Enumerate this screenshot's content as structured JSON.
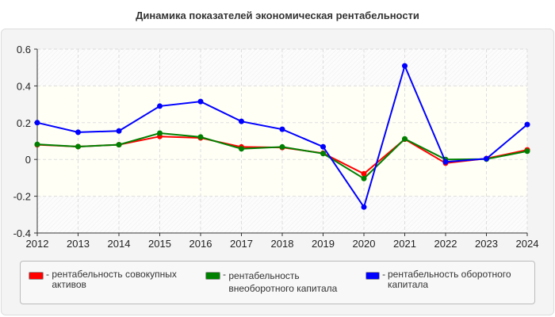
{
  "chart_data": {
    "type": "line",
    "title": "Динамика показателей экономическая рентабельности",
    "xlabel": "",
    "ylabel": "",
    "categories": [
      "2012",
      "2013",
      "2014",
      "2015",
      "2016",
      "2017",
      "2018",
      "2019",
      "2020",
      "2021",
      "2022",
      "2023",
      "2024"
    ],
    "ylim": [
      -0.4,
      0.6
    ],
    "yticks": [
      0.6,
      0.4,
      0.2,
      0,
      -0.2,
      -0.4
    ],
    "ytick_labels": [
      "0.6",
      "0.4",
      "0.2",
      "0",
      "-0.2",
      "-0.4"
    ],
    "grid": true,
    "legend_position": "bottom",
    "series": [
      {
        "name": "рентабельность совокупных активов",
        "color": "#ff0000",
        "values": [
          0.08,
          0.07,
          0.08,
          0.125,
          0.117,
          0.068,
          0.065,
          0.034,
          -0.078,
          0.11,
          -0.02,
          0.005,
          0.052
        ]
      },
      {
        "name": "рентабельность внеоборотного капитала",
        "color": "#008000",
        "values": [
          0.082,
          0.07,
          0.08,
          0.143,
          0.122,
          0.058,
          0.068,
          0.032,
          -0.104,
          0.112,
          0.0,
          0.002,
          0.045
        ]
      },
      {
        "name": "рентабельность оборотного капитала",
        "color": "#0000ff",
        "values": [
          0.2,
          0.148,
          0.155,
          0.29,
          0.315,
          0.207,
          0.164,
          0.069,
          -0.259,
          0.509,
          -0.013,
          0.004,
          0.19
        ]
      }
    ]
  }
}
